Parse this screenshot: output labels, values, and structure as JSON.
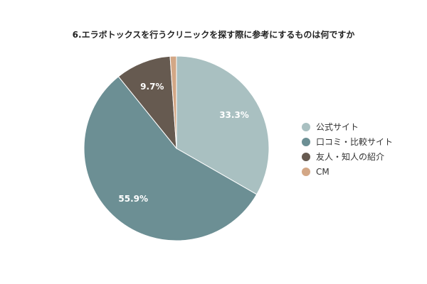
{
  "chart_data": {
    "type": "pie",
    "title": "6.エラボトックスを行うクリニックを探す際に参考にするものは何ですか",
    "legend_position": "right",
    "slices": [
      {
        "name": "公式サイト",
        "value": 33.3,
        "label": "33.3%",
        "color": "#a9c0c1"
      },
      {
        "name": "口コミ・比較サイト",
        "value": 55.9,
        "label": "55.9%",
        "color": "#6c8f94"
      },
      {
        "name": "友人・知人の紹介",
        "value": 9.7,
        "label": "9.7%",
        "color": "#665a50"
      },
      {
        "name": "CM",
        "value": 1.1,
        "label": "",
        "color": "#d3a786"
      }
    ]
  }
}
